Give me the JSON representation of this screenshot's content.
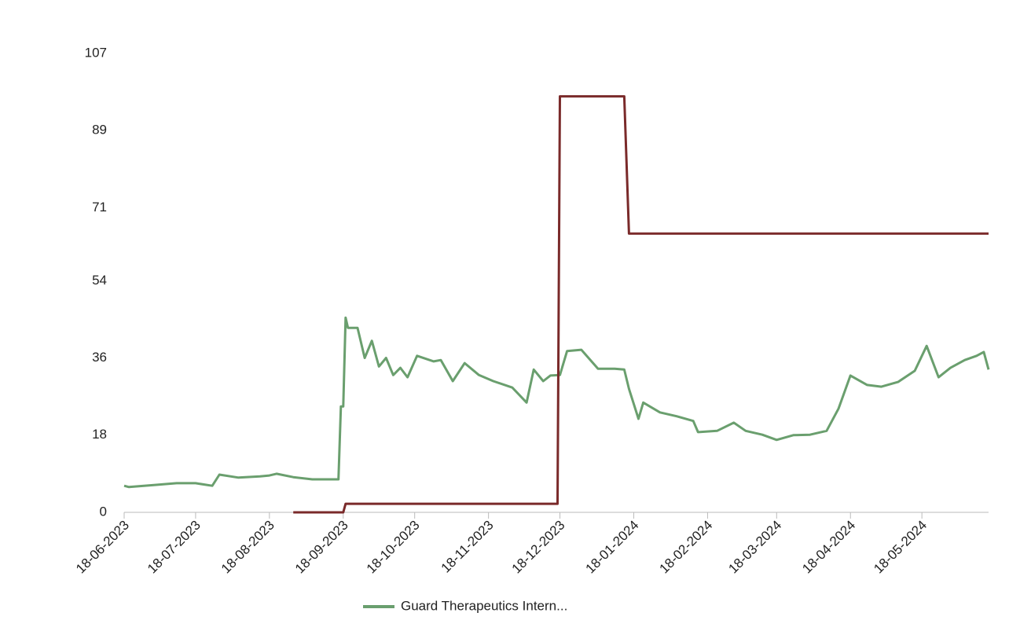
{
  "chart_data": {
    "type": "line",
    "xlim": [
      "2023-06-18",
      "2024-06-15"
    ],
    "xticks": [
      {
        "value": "2023-06-18",
        "label": "18-06-2023"
      },
      {
        "value": "2023-07-18",
        "label": "18-07-2023"
      },
      {
        "value": "2023-08-18",
        "label": "18-08-2023"
      },
      {
        "value": "2023-09-18",
        "label": "18-09-2023"
      },
      {
        "value": "2023-10-18",
        "label": "18-10-2023"
      },
      {
        "value": "2023-11-18",
        "label": "18-11-2023"
      },
      {
        "value": "2023-12-18",
        "label": "18-12-2023"
      },
      {
        "value": "2024-01-18",
        "label": "18-01-2024"
      },
      {
        "value": "2024-02-18",
        "label": "18-02-2024"
      },
      {
        "value": "2024-03-18",
        "label": "18-03-2024"
      },
      {
        "value": "2024-04-18",
        "label": "18-04-2024"
      },
      {
        "value": "2024-05-18",
        "label": "18-05-2024"
      }
    ],
    "ylim": [
      0,
      107
    ],
    "yticks": [
      0,
      18,
      36,
      54,
      71,
      89,
      107
    ],
    "grid": false,
    "legend": "bottom",
    "series": [
      {
        "name": "Guard Therapeutics Intern...",
        "color": "#6a9f6e",
        "x": [
          "2023-06-18",
          "2023-06-20",
          "2023-07-01",
          "2023-07-10",
          "2023-07-18",
          "2023-07-25",
          "2023-07-28",
          "2023-08-05",
          "2023-08-14",
          "2023-08-18",
          "2023-08-21",
          "2023-08-28",
          "2023-09-05",
          "2023-09-16",
          "2023-09-17",
          "2023-09-18",
          "2023-09-19",
          "2023-09-20",
          "2023-09-24",
          "2023-09-27",
          "2023-09-30",
          "2023-10-03",
          "2023-10-06",
          "2023-10-09",
          "2023-10-12",
          "2023-10-15",
          "2023-10-19",
          "2023-10-26",
          "2023-10-29",
          "2023-11-03",
          "2023-11-08",
          "2023-11-14",
          "2023-11-20",
          "2023-11-28",
          "2023-12-04",
          "2023-12-07",
          "2023-12-11",
          "2023-12-14",
          "2023-12-18",
          "2023-12-21",
          "2023-12-27",
          "2024-01-03",
          "2024-01-10",
          "2024-01-14",
          "2024-01-16",
          "2024-01-20",
          "2024-01-22",
          "2024-01-29",
          "2024-02-05",
          "2024-02-12",
          "2024-02-14",
          "2024-02-22",
          "2024-02-29",
          "2024-03-05",
          "2024-03-12",
          "2024-03-18",
          "2024-03-25",
          "2024-04-01",
          "2024-04-08",
          "2024-04-13",
          "2024-04-18",
          "2024-04-25",
          "2024-05-01",
          "2024-05-08",
          "2024-05-15",
          "2024-05-20",
          "2024-05-25",
          "2024-05-30",
          "2024-06-05",
          "2024-06-10",
          "2024-06-13",
          "2024-06-15"
        ],
        "values": [
          6.2,
          5.9,
          6.4,
          6.8,
          6.8,
          6.2,
          8.8,
          8.1,
          8.4,
          8.6,
          9.0,
          8.2,
          7.7,
          7.7,
          24.7,
          24.7,
          45.4,
          43,
          43,
          36,
          40,
          34,
          36,
          32,
          33.7,
          31.5,
          36.5,
          35.2,
          35.5,
          30.6,
          34.8,
          32,
          30.6,
          29.1,
          25.6,
          33.3,
          30.6,
          31.9,
          32,
          37.6,
          37.9,
          33.5,
          33.5,
          33.3,
          28.8,
          21.8,
          25.6,
          23.3,
          22.4,
          21.3,
          18.7,
          19,
          20.9,
          19,
          18.1,
          16.9,
          18,
          18.1,
          19,
          24.2,
          31.9,
          29.7,
          29.3,
          30.4,
          33,
          38.8,
          31.5,
          33.7,
          35.5,
          36.5,
          37.4,
          33.3
        ]
      },
      {
        "color": "#7a2a2a",
        "x": [
          "2023-08-28",
          "2023-09-18",
          "2023-09-19",
          "2023-12-17",
          "2023-12-18",
          "2024-01-14",
          "2024-01-16",
          "2024-06-15"
        ],
        "values": [
          0,
          0,
          2,
          2,
          97,
          97,
          65,
          65
        ]
      }
    ]
  }
}
